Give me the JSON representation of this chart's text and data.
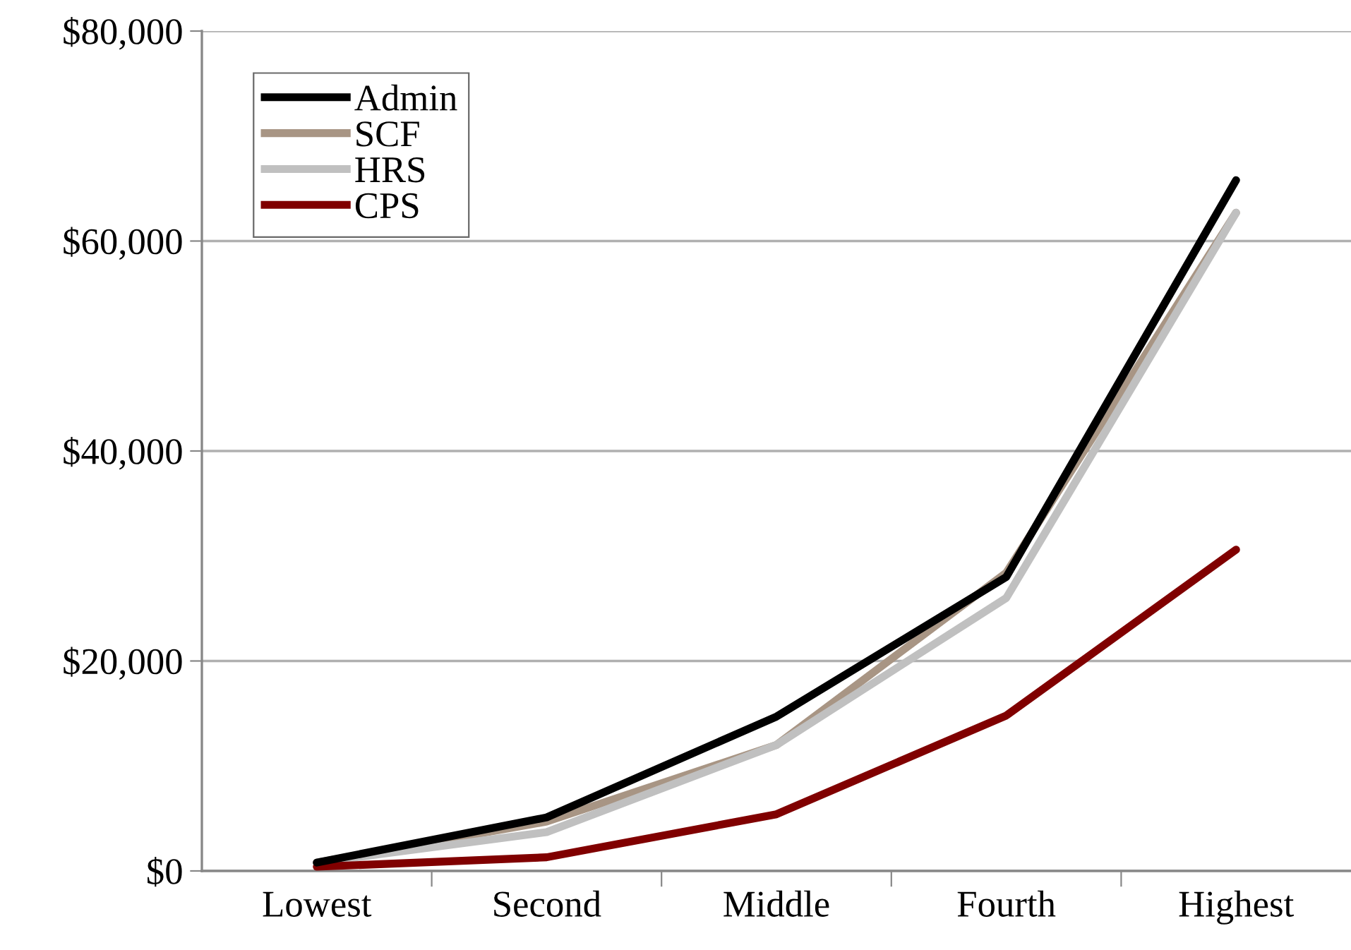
{
  "chart_data": {
    "type": "line",
    "categories": [
      "Lowest",
      "Second",
      "Middle",
      "Fourth",
      "Highest"
    ],
    "series": [
      {
        "name": "Admin",
        "color": "#000000",
        "values": [
          800,
          5100,
          14700,
          28000,
          65800
        ]
      },
      {
        "name": "SCF",
        "color": "#a89584",
        "values": [
          800,
          4700,
          12000,
          28400,
          62700
        ]
      },
      {
        "name": "HRS",
        "color": "#c0c0c0",
        "values": [
          800,
          3700,
          12000,
          26000,
          62700
        ]
      },
      {
        "name": "CPS",
        "color": "#800000",
        "values": [
          400,
          1300,
          5400,
          14800,
          30600
        ]
      }
    ],
    "ylim": [
      0,
      80000
    ],
    "yticks": [
      {
        "value": 0,
        "label": "$0"
      },
      {
        "value": 20000,
        "label": "$20,000"
      },
      {
        "value": 40000,
        "label": "$40,000"
      },
      {
        "value": 60000,
        "label": "$60,000"
      },
      {
        "value": 80000,
        "label": "$80,000"
      }
    ],
    "grid": "y",
    "legend": "top left",
    "marker": "none",
    "line_style": "solid"
  }
}
